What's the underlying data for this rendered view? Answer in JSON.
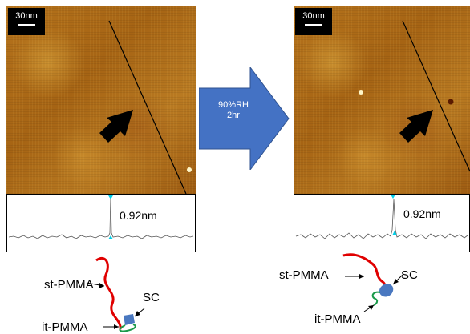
{
  "panel_before": {
    "scale_label": "30nm",
    "height_label": "0.92nm",
    "molecule_labels": {
      "st": "st-PMMA",
      "sc": "SC",
      "it": "it-PMMA"
    }
  },
  "panel_after": {
    "scale_label": "30nm",
    "height_label": "0.92nm",
    "molecule_labels": {
      "st": "st-PMMA",
      "sc": "SC",
      "it": "it-PMMA"
    }
  },
  "process_arrow": {
    "line1": "90%RH",
    "line2": "2hr"
  },
  "colors": {
    "arrow_fill": "#4472c4",
    "st_chain": "#e00000",
    "sc_blob": "#4a78c0",
    "it_chain": "#1a9a4a",
    "marker": "#00cfe8"
  }
}
